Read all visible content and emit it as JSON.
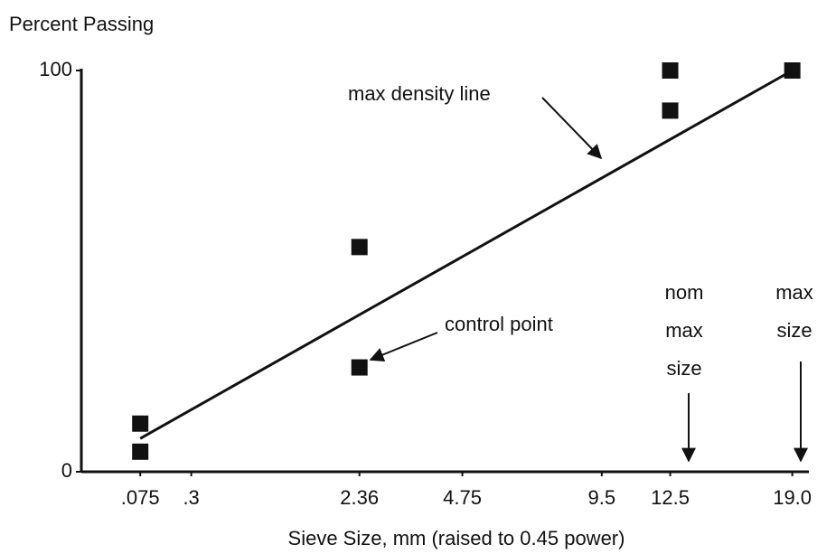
{
  "chart_data": {
    "type": "scatter",
    "y_label": "Percent Passing",
    "x_label": "Sieve Size, mm (raised to 0.45 power)",
    "x_scale_power": 0.45,
    "xlim": [
      0,
      20
    ],
    "xticks": [
      {
        "value": 0.075,
        "label": ".075"
      },
      {
        "value": 0.3,
        "label": ".3"
      },
      2.36,
      4.75,
      9.5,
      12.5,
      {
        "value": 19,
        "label": "19.0"
      }
    ],
    "ylim": [
      0,
      100
    ],
    "yticks": [
      0,
      100
    ],
    "series": [
      {
        "type": "scatter",
        "color": "#111111",
        "x": [
          0.075,
          0.075,
          2.36,
          2.36,
          12.5,
          12.5,
          19
        ],
        "values": [
          12,
          5,
          56,
          26,
          100,
          90,
          100
        ]
      },
      {
        "type": "line",
        "color": "#111111",
        "x": [
          0.075,
          19
        ],
        "values": [
          8.3,
          100
        ]
      }
    ],
    "annotations": [
      {
        "lines": [
          "max density line"
        ]
      },
      {
        "lines": [
          "control point"
        ]
      },
      {
        "lines": [
          "nom",
          "max",
          "size"
        ]
      },
      {
        "lines": [
          "max",
          "size"
        ]
      }
    ]
  }
}
